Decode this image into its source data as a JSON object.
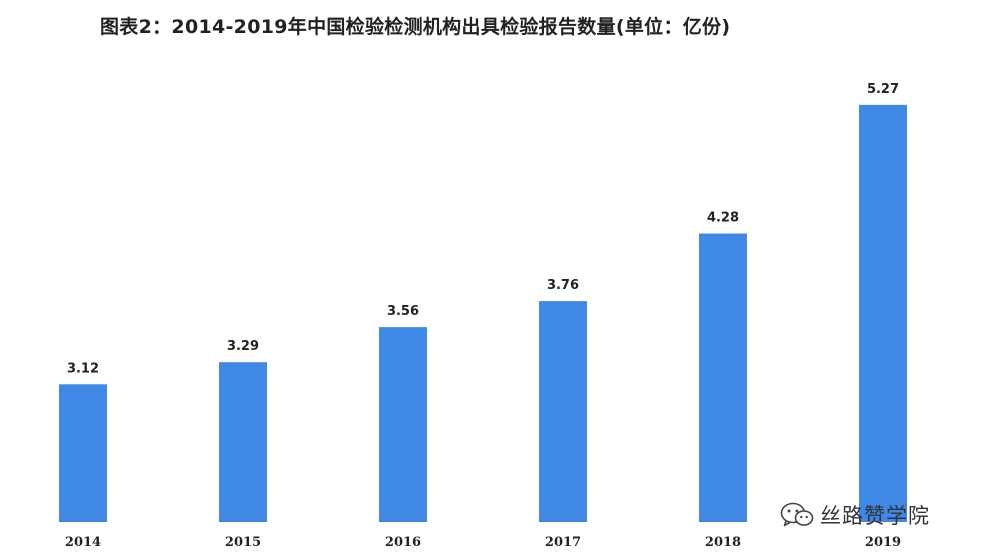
{
  "chart_data": {
    "type": "bar",
    "title": "图表2：2014-2019年中国检验检测机构出具检验报告数量(单位：亿份)",
    "categories": [
      "2014",
      "2015",
      "2016",
      "2017",
      "2018",
      "2019"
    ],
    "values": [
      3.12,
      3.29,
      3.56,
      3.76,
      4.28,
      5.27
    ],
    "value_labels": [
      "3.12",
      "3.29",
      "3.56",
      "3.76",
      "4.28",
      "5.27"
    ],
    "xlabel": "",
    "ylabel": "",
    "ylim": [
      2.06,
      5.5
    ],
    "grid": false,
    "legend": "none",
    "bar_color": "#3f88e5"
  },
  "watermark": {
    "text": "丝路赞学院",
    "icon": "wechat-icon"
  }
}
